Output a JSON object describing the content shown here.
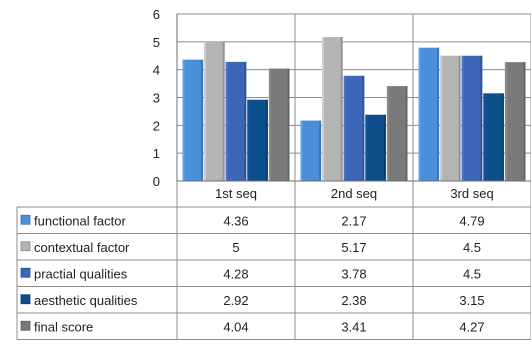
{
  "chart_data": {
    "type": "bar",
    "categories": [
      "1st seq",
      "2nd seq",
      "3rd seq"
    ],
    "ylim": [
      0,
      6
    ],
    "yticks": [
      0,
      1,
      2,
      3,
      4,
      5,
      6
    ],
    "grid": true,
    "legend_placement": "data-table-left",
    "series": [
      {
        "name": "functional factor",
        "color": "#4a90d9",
        "values": [
          4.36,
          2.17,
          4.79
        ]
      },
      {
        "name": "contextual factor",
        "color": "#b4b4b4",
        "values": [
          5,
          5.17,
          4.5
        ]
      },
      {
        "name": "practial qualities",
        "color": "#3e66b8",
        "values": [
          4.28,
          3.78,
          4.5
        ]
      },
      {
        "name": "aesthetic qualities",
        "color": "#0d4f8b",
        "values": [
          2.92,
          2.38,
          3.15
        ]
      },
      {
        "name": "final score",
        "color": "#7a7a7a",
        "values": [
          4.04,
          3.41,
          4.27
        ]
      }
    ],
    "table_values": [
      [
        "4.36",
        "2.17",
        "4.79"
      ],
      [
        "5",
        "5.17",
        "4.5"
      ],
      [
        "4.28",
        "3.78",
        "4.5"
      ],
      [
        "2.92",
        "2.38",
        "3.15"
      ],
      [
        "4.04",
        "3.41",
        "4.27"
      ]
    ]
  }
}
